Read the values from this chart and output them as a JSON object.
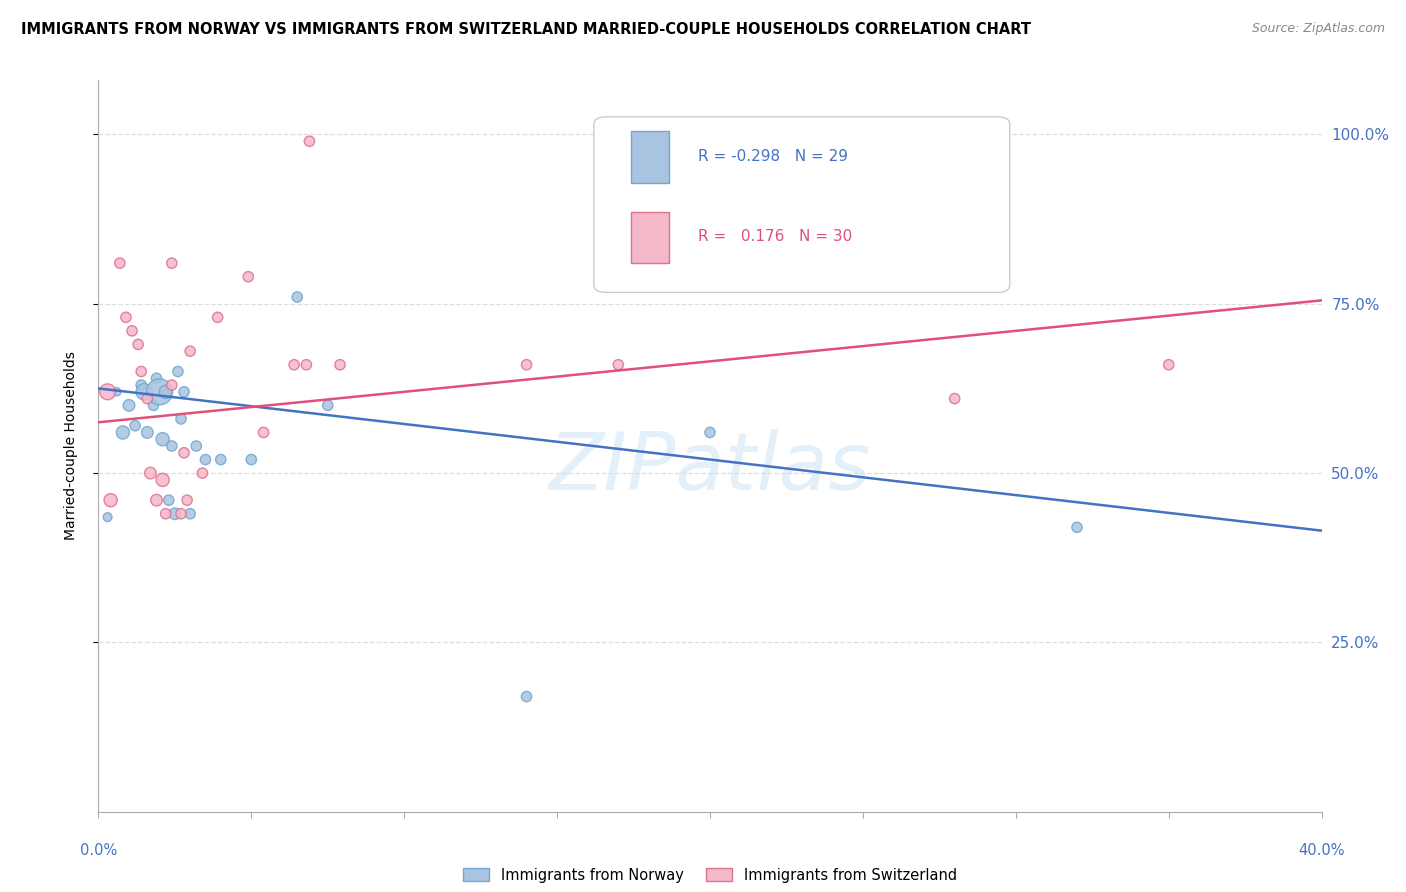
{
  "title": "IMMIGRANTS FROM NORWAY VS IMMIGRANTS FROM SWITZERLAND MARRIED-COUPLE HOUSEHOLDS CORRELATION CHART",
  "source": "Source: ZipAtlas.com",
  "ylabel": "Married-couple Households",
  "ytick_labels": [
    "100.0%",
    "75.0%",
    "50.0%",
    "25.0%"
  ],
  "ytick_positions": [
    1.0,
    0.75,
    0.5,
    0.25
  ],
  "xlim": [
    0.0,
    0.4
  ],
  "ylim": [
    0.0,
    1.08
  ],
  "norway_color": "#a8c4e0",
  "norway_edge_color": "#6fa8d0",
  "switzerland_color": "#f4b8c8",
  "switzerland_edge_color": "#e07090",
  "norway_line_color": "#4472c4",
  "switzerland_line_color": "#e0507a",
  "legend_R_norway": "-0.298",
  "legend_N_norway": "29",
  "legend_R_switzerland": " 0.176",
  "legend_N_switzerland": "30",
  "norway_scatter_x": [
    0.003,
    0.006,
    0.008,
    0.01,
    0.012,
    0.014,
    0.015,
    0.016,
    0.018,
    0.019,
    0.02,
    0.021,
    0.022,
    0.023,
    0.024,
    0.025,
    0.026,
    0.027,
    0.028,
    0.03,
    0.032,
    0.035,
    0.04,
    0.05,
    0.065,
    0.075,
    0.14,
    0.2,
    0.32
  ],
  "norway_scatter_y": [
    0.435,
    0.62,
    0.56,
    0.6,
    0.57,
    0.63,
    0.62,
    0.56,
    0.6,
    0.64,
    0.62,
    0.55,
    0.62,
    0.46,
    0.54,
    0.44,
    0.65,
    0.58,
    0.62,
    0.44,
    0.54,
    0.52,
    0.52,
    0.52,
    0.76,
    0.6,
    0.17,
    0.56,
    0.42
  ],
  "norway_scatter_size": [
    40,
    35,
    90,
    70,
    55,
    55,
    140,
    70,
    55,
    55,
    350,
    90,
    90,
    55,
    55,
    70,
    55,
    55,
    55,
    55,
    55,
    55,
    55,
    55,
    55,
    55,
    55,
    55,
    55
  ],
  "switzerland_scatter_x": [
    0.003,
    0.004,
    0.007,
    0.009,
    0.011,
    0.013,
    0.014,
    0.016,
    0.017,
    0.019,
    0.021,
    0.022,
    0.024,
    0.024,
    0.027,
    0.028,
    0.029,
    0.03,
    0.034,
    0.039,
    0.049,
    0.054,
    0.064,
    0.068,
    0.069,
    0.079,
    0.14,
    0.17,
    0.28,
    0.35
  ],
  "switzerland_scatter_y": [
    0.62,
    0.46,
    0.81,
    0.73,
    0.71,
    0.69,
    0.65,
    0.61,
    0.5,
    0.46,
    0.49,
    0.44,
    0.63,
    0.81,
    0.44,
    0.53,
    0.46,
    0.68,
    0.5,
    0.73,
    0.79,
    0.56,
    0.66,
    0.66,
    0.99,
    0.66,
    0.66,
    0.66,
    0.61,
    0.66
  ],
  "switzerland_scatter_size": [
    130,
    90,
    55,
    55,
    55,
    55,
    55,
    55,
    70,
    70,
    90,
    55,
    55,
    55,
    55,
    55,
    55,
    55,
    55,
    55,
    55,
    55,
    55,
    55,
    55,
    55,
    55,
    55,
    55,
    55
  ],
  "norway_trendline_x": [
    0.0,
    0.4
  ],
  "norway_trendline_y": [
    0.625,
    0.415
  ],
  "switzerland_trendline_x": [
    0.0,
    0.4
  ],
  "switzerland_trendline_y": [
    0.575,
    0.755
  ],
  "watermark": "ZIPatlas",
  "grid_color": "#dddddd",
  "xtick_positions": [
    0.0,
    0.05,
    0.1,
    0.15,
    0.2,
    0.25,
    0.3,
    0.35,
    0.4
  ]
}
